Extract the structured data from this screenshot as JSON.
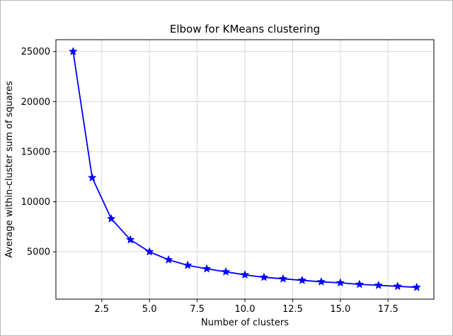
{
  "figure": {
    "background": "#ffffff",
    "border_color": "#b8b8b8"
  },
  "chart_data": {
    "type": "line",
    "title": "Elbow for KMeans clustering",
    "xlabel": "Number of clusters",
    "ylabel": "Average within-cluster sum of squares",
    "x": [
      1,
      2,
      3,
      4,
      5,
      6,
      7,
      8,
      9,
      10,
      11,
      12,
      13,
      14,
      15,
      16,
      17,
      18,
      19
    ],
    "y": [
      25000,
      12400,
      8300,
      6200,
      5000,
      4200,
      3650,
      3300,
      3000,
      2700,
      2450,
      2300,
      2150,
      2000,
      1900,
      1750,
      1650,
      1550,
      1450
    ],
    "line_color": "#0000ff",
    "marker": "star",
    "marker_color": "#0000ff",
    "grid": true,
    "grid_color": "#d6d6d6",
    "spine_color": "#000000",
    "xlim": [
      0.1,
      19.9
    ],
    "ylim": [
      270,
      26180
    ],
    "xticks": [
      2.5,
      5.0,
      7.5,
      10.0,
      12.5,
      15.0,
      17.5
    ],
    "xtick_labels": [
      "2.5",
      "5.0",
      "7.5",
      "10.0",
      "12.5",
      "15.0",
      "17.5"
    ],
    "yticks": [
      5000,
      10000,
      15000,
      20000,
      25000
    ],
    "ytick_labels": [
      "5000",
      "10000",
      "15000",
      "20000",
      "25000"
    ],
    "legend": "none"
  }
}
